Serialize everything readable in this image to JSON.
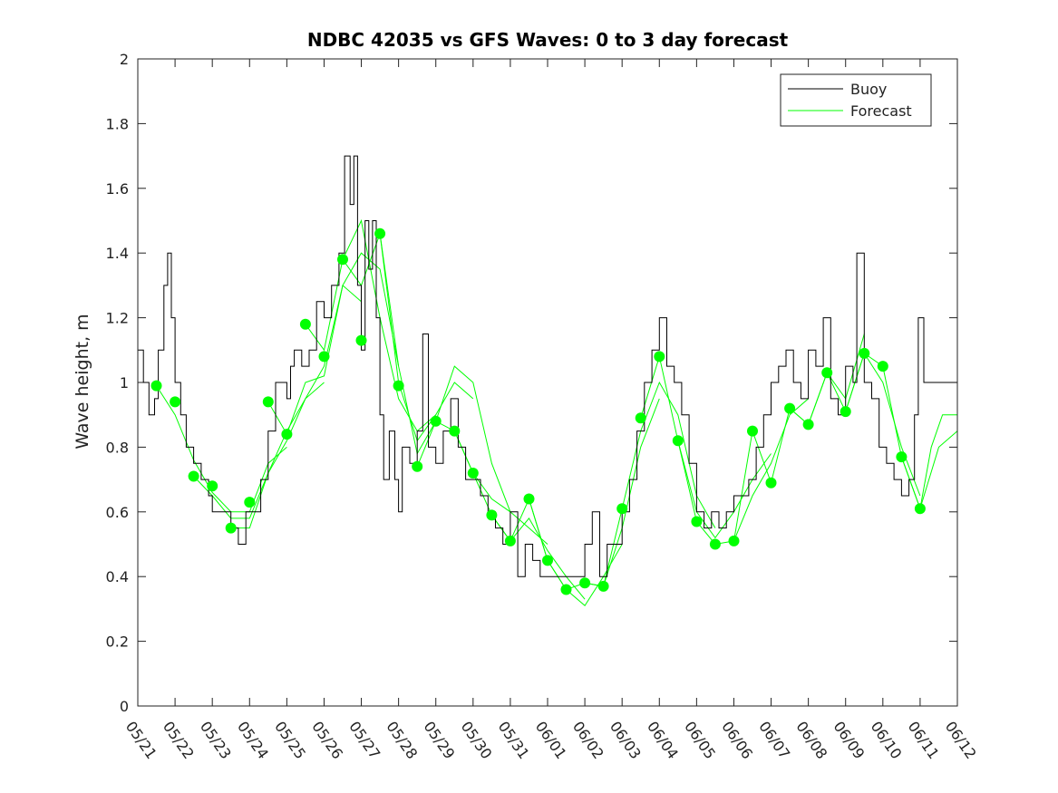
{
  "chart_data": {
    "type": "line",
    "title": "NDBC 42035 vs GFS Waves: 0 to 3 day forecast",
    "ylabel": "Wave height, m",
    "xlabel": "",
    "x_ticks": [
      "05/21",
      "05/22",
      "05/23",
      "05/24",
      "05/25",
      "05/26",
      "05/27",
      "05/28",
      "05/29",
      "05/30",
      "05/31",
      "06/01",
      "06/02",
      "06/03",
      "06/04",
      "06/05",
      "06/06",
      "06/07",
      "06/08",
      "06/09",
      "06/10",
      "06/11",
      "06/12"
    ],
    "y_ticks": [
      "0",
      "0.2",
      "0.4",
      "0.6",
      "0.8",
      "1",
      "1.2",
      "1.4",
      "1.6",
      "1.8",
      "2"
    ],
    "xlim_days": [
      0,
      22
    ],
    "ylim": [
      0,
      2
    ],
    "legend": {
      "position": "top-right",
      "entries": [
        "Buoy",
        "Forecast"
      ]
    },
    "colors": {
      "buoy": "#000000",
      "forecast": "#00ff00"
    },
    "buoy": [
      [
        0,
        1.1
      ],
      [
        0.15,
        1.0
      ],
      [
        0.3,
        0.9
      ],
      [
        0.45,
        0.95
      ],
      [
        0.55,
        1.1
      ],
      [
        0.7,
        1.3
      ],
      [
        0.8,
        1.4
      ],
      [
        0.9,
        1.2
      ],
      [
        1.0,
        1.0
      ],
      [
        1.15,
        0.9
      ],
      [
        1.3,
        0.8
      ],
      [
        1.5,
        0.75
      ],
      [
        1.7,
        0.7
      ],
      [
        1.9,
        0.65
      ],
      [
        2.0,
        0.6
      ],
      [
        2.3,
        0.6
      ],
      [
        2.5,
        0.55
      ],
      [
        2.7,
        0.5
      ],
      [
        2.9,
        0.6
      ],
      [
        3.1,
        0.6
      ],
      [
        3.3,
        0.7
      ],
      [
        3.5,
        0.85
      ],
      [
        3.7,
        1.0
      ],
      [
        3.9,
        1.0
      ],
      [
        4.0,
        0.95
      ],
      [
        4.1,
        1.05
      ],
      [
        4.2,
        1.1
      ],
      [
        4.4,
        1.05
      ],
      [
        4.6,
        1.1
      ],
      [
        4.8,
        1.25
      ],
      [
        5.0,
        1.2
      ],
      [
        5.2,
        1.3
      ],
      [
        5.4,
        1.4
      ],
      [
        5.55,
        1.7
      ],
      [
        5.7,
        1.55
      ],
      [
        5.8,
        1.7
      ],
      [
        5.9,
        1.3
      ],
      [
        6.0,
        1.1
      ],
      [
        6.1,
        1.5
      ],
      [
        6.2,
        1.35
      ],
      [
        6.3,
        1.5
      ],
      [
        6.4,
        1.2
      ],
      [
        6.5,
        0.9
      ],
      [
        6.6,
        0.7
      ],
      [
        6.75,
        0.85
      ],
      [
        6.9,
        0.7
      ],
      [
        7.0,
        0.6
      ],
      [
        7.1,
        0.8
      ],
      [
        7.3,
        0.75
      ],
      [
        7.5,
        0.85
      ],
      [
        7.65,
        1.15
      ],
      [
        7.8,
        0.8
      ],
      [
        8.0,
        0.75
      ],
      [
        8.2,
        0.85
      ],
      [
        8.4,
        0.95
      ],
      [
        8.6,
        0.8
      ],
      [
        8.8,
        0.7
      ],
      [
        9.0,
        0.7
      ],
      [
        9.2,
        0.65
      ],
      [
        9.4,
        0.6
      ],
      [
        9.6,
        0.55
      ],
      [
        9.8,
        0.5
      ],
      [
        10.0,
        0.6
      ],
      [
        10.2,
        0.4
      ],
      [
        10.4,
        0.5
      ],
      [
        10.6,
        0.45
      ],
      [
        10.8,
        0.4
      ],
      [
        11.0,
        0.4
      ],
      [
        11.2,
        0.4
      ],
      [
        11.5,
        0.4
      ],
      [
        11.8,
        0.4
      ],
      [
        12.0,
        0.5
      ],
      [
        12.2,
        0.6
      ],
      [
        12.4,
        0.4
      ],
      [
        12.6,
        0.5
      ],
      [
        12.8,
        0.5
      ],
      [
        13.0,
        0.6
      ],
      [
        13.2,
        0.7
      ],
      [
        13.4,
        0.85
      ],
      [
        13.6,
        1.0
      ],
      [
        13.8,
        1.1
      ],
      [
        14.0,
        1.2
      ],
      [
        14.2,
        1.05
      ],
      [
        14.4,
        1.0
      ],
      [
        14.6,
        0.9
      ],
      [
        14.8,
        0.75
      ],
      [
        15.0,
        0.6
      ],
      [
        15.2,
        0.55
      ],
      [
        15.4,
        0.6
      ],
      [
        15.6,
        0.55
      ],
      [
        15.8,
        0.6
      ],
      [
        16.0,
        0.65
      ],
      [
        16.2,
        0.65
      ],
      [
        16.4,
        0.7
      ],
      [
        16.6,
        0.8
      ],
      [
        16.8,
        0.9
      ],
      [
        17.0,
        1.0
      ],
      [
        17.2,
        1.05
      ],
      [
        17.4,
        1.1
      ],
      [
        17.6,
        1.0
      ],
      [
        17.8,
        0.95
      ],
      [
        18.0,
        1.1
      ],
      [
        18.2,
        1.05
      ],
      [
        18.4,
        1.2
      ],
      [
        18.6,
        0.95
      ],
      [
        18.8,
        0.9
      ],
      [
        19.0,
        1.05
      ],
      [
        19.2,
        1.0
      ],
      [
        19.3,
        1.4
      ],
      [
        19.5,
        1.0
      ],
      [
        19.7,
        0.95
      ],
      [
        19.9,
        0.8
      ],
      [
        20.1,
        0.75
      ],
      [
        20.3,
        0.7
      ],
      [
        20.5,
        0.65
      ],
      [
        20.7,
        0.7
      ],
      [
        20.85,
        0.9
      ],
      [
        20.95,
        1.2
      ],
      [
        21.1,
        1.0
      ],
      [
        21.4,
        1.0
      ],
      [
        21.7,
        1.0
      ],
      [
        22.0,
        1.0
      ]
    ],
    "forecast_markers": [
      [
        0.5,
        0.99
      ],
      [
        1.0,
        0.94
      ],
      [
        1.5,
        0.71
      ],
      [
        2.0,
        0.68
      ],
      [
        2.5,
        0.55
      ],
      [
        3.0,
        0.63
      ],
      [
        3.5,
        0.94
      ],
      [
        4.0,
        0.84
      ],
      [
        4.5,
        1.18
      ],
      [
        5.0,
        1.08
      ],
      [
        5.5,
        1.38
      ],
      [
        6.0,
        1.13
      ],
      [
        6.5,
        1.46
      ],
      [
        7.0,
        0.99
      ],
      [
        7.5,
        0.74
      ],
      [
        8.0,
        0.88
      ],
      [
        8.5,
        0.85
      ],
      [
        9.0,
        0.72
      ],
      [
        9.5,
        0.59
      ],
      [
        10.0,
        0.51
      ],
      [
        10.5,
        0.64
      ],
      [
        11.0,
        0.45
      ],
      [
        11.5,
        0.36
      ],
      [
        12.0,
        0.38
      ],
      [
        12.5,
        0.37
      ],
      [
        13.0,
        0.61
      ],
      [
        13.5,
        0.89
      ],
      [
        14.0,
        1.08
      ],
      [
        14.5,
        0.82
      ],
      [
        15.0,
        0.57
      ],
      [
        15.5,
        0.5
      ],
      [
        16.0,
        0.51
      ],
      [
        16.5,
        0.85
      ],
      [
        17.0,
        0.69
      ],
      [
        17.5,
        0.92
      ],
      [
        18.0,
        0.87
      ],
      [
        18.5,
        1.03
      ],
      [
        19.0,
        0.91
      ],
      [
        19.5,
        1.09
      ],
      [
        20.0,
        1.05
      ],
      [
        20.5,
        0.77
      ],
      [
        21.0,
        0.61
      ]
    ],
    "forecast_series": [
      {
        "values": [
          [
            0.5,
            0.99
          ],
          [
            1,
            0.9
          ],
          [
            1.5,
            0.76
          ],
          [
            2,
            0.66
          ],
          [
            2.5,
            0.6
          ],
          [
            3,
            0.6
          ],
          [
            3.5,
            0.75
          ],
          [
            4,
            0.8
          ]
        ]
      },
      {
        "values": [
          [
            1.5,
            0.71
          ],
          [
            2,
            0.65
          ],
          [
            2.5,
            0.58
          ],
          [
            3,
            0.58
          ],
          [
            3.5,
            0.72
          ],
          [
            4,
            0.85
          ],
          [
            4.5,
            0.95
          ],
          [
            5,
            1.0
          ]
        ]
      },
      {
        "values": [
          [
            2.5,
            0.55
          ],
          [
            3,
            0.55
          ],
          [
            3.5,
            0.72
          ],
          [
            4,
            0.82
          ],
          [
            4.5,
            0.95
          ],
          [
            5,
            1.05
          ],
          [
            5.5,
            1.3
          ],
          [
            6,
            1.25
          ]
        ]
      },
      {
        "values": [
          [
            3.5,
            0.94
          ],
          [
            4,
            0.84
          ],
          [
            4.5,
            1.0
          ],
          [
            5,
            1.02
          ],
          [
            5.5,
            1.3
          ],
          [
            6,
            1.4
          ],
          [
            6.5,
            1.35
          ],
          [
            7,
            1.05
          ]
        ]
      },
      {
        "values": [
          [
            4.5,
            1.18
          ],
          [
            5,
            1.1
          ],
          [
            5.5,
            1.38
          ],
          [
            6,
            1.5
          ],
          [
            6.5,
            1.2
          ],
          [
            7,
            0.95
          ],
          [
            7.5,
            0.85
          ],
          [
            8,
            0.9
          ]
        ]
      },
      {
        "values": [
          [
            5.5,
            1.38
          ],
          [
            6,
            1.3
          ],
          [
            6.5,
            1.46
          ],
          [
            7,
            1.0
          ],
          [
            7.5,
            0.82
          ],
          [
            8,
            0.9
          ],
          [
            8.5,
            1.0
          ],
          [
            9,
            0.95
          ]
        ]
      },
      {
        "values": [
          [
            6.5,
            1.46
          ],
          [
            7,
            1.05
          ],
          [
            7.5,
            0.78
          ],
          [
            8,
            0.88
          ],
          [
            8.5,
            1.05
          ],
          [
            9,
            1.0
          ],
          [
            9.5,
            0.75
          ],
          [
            10,
            0.6
          ]
        ]
      },
      {
        "values": [
          [
            7.5,
            0.74
          ],
          [
            8,
            0.88
          ],
          [
            8.5,
            0.85
          ],
          [
            9,
            0.72
          ],
          [
            9.5,
            0.64
          ],
          [
            10,
            0.6
          ],
          [
            10.5,
            0.55
          ],
          [
            11,
            0.5
          ]
        ]
      },
      {
        "values": [
          [
            8.5,
            0.85
          ],
          [
            9,
            0.72
          ],
          [
            9.5,
            0.59
          ],
          [
            10,
            0.51
          ],
          [
            10.5,
            0.58
          ],
          [
            11,
            0.48
          ],
          [
            11.5,
            0.4
          ],
          [
            12,
            0.33
          ]
        ]
      },
      {
        "values": [
          [
            9.5,
            0.59
          ],
          [
            10,
            0.51
          ],
          [
            10.5,
            0.64
          ],
          [
            11,
            0.45
          ],
          [
            11.5,
            0.36
          ],
          [
            12,
            0.31
          ],
          [
            12.5,
            0.4
          ],
          [
            13,
            0.5
          ]
        ]
      },
      {
        "values": [
          [
            10.5,
            0.64
          ],
          [
            11,
            0.45
          ],
          [
            11.5,
            0.36
          ],
          [
            12,
            0.38
          ],
          [
            12.5,
            0.37
          ],
          [
            13,
            0.55
          ],
          [
            13.5,
            0.8
          ],
          [
            14,
            0.95
          ]
        ]
      },
      {
        "values": [
          [
            12,
            0.38
          ],
          [
            12.5,
            0.37
          ],
          [
            13,
            0.61
          ],
          [
            13.5,
            0.85
          ],
          [
            14,
            1.0
          ],
          [
            14.5,
            0.9
          ],
          [
            15,
            0.65
          ],
          [
            15.5,
            0.55
          ]
        ]
      },
      {
        "values": [
          [
            13.5,
            0.89
          ],
          [
            14,
            1.08
          ],
          [
            14.5,
            0.82
          ],
          [
            15,
            0.6
          ],
          [
            15.5,
            0.52
          ],
          [
            16,
            0.6
          ],
          [
            16.5,
            0.7
          ],
          [
            17,
            0.78
          ]
        ]
      },
      {
        "values": [
          [
            14.5,
            0.82
          ],
          [
            15,
            0.57
          ],
          [
            15.5,
            0.5
          ],
          [
            16,
            0.51
          ],
          [
            16.5,
            0.65
          ],
          [
            17,
            0.75
          ],
          [
            17.5,
            0.9
          ],
          [
            18,
            0.95
          ]
        ]
      },
      {
        "values": [
          [
            16,
            0.51
          ],
          [
            16.5,
            0.85
          ],
          [
            17,
            0.69
          ],
          [
            17.5,
            0.92
          ],
          [
            18,
            0.87
          ],
          [
            18.5,
            1.03
          ],
          [
            19,
            0.95
          ],
          [
            19.5,
            1.15
          ]
        ]
      },
      {
        "values": [
          [
            17.5,
            0.92
          ],
          [
            18,
            0.87
          ],
          [
            18.5,
            1.03
          ],
          [
            19,
            0.91
          ],
          [
            19.5,
            1.09
          ],
          [
            20,
            1.0
          ],
          [
            20.5,
            0.8
          ],
          [
            21,
            0.65
          ]
        ]
      },
      {
        "values": [
          [
            19,
            0.91
          ],
          [
            19.5,
            1.09
          ],
          [
            20,
            1.05
          ],
          [
            20.5,
            0.77
          ],
          [
            21,
            0.61
          ],
          [
            21.5,
            0.8
          ],
          [
            22,
            0.85
          ]
        ]
      },
      {
        "values": [
          [
            20.5,
            0.77
          ],
          [
            21,
            0.61
          ],
          [
            21.3,
            0.8
          ],
          [
            21.6,
            0.9
          ],
          [
            22,
            0.9
          ]
        ]
      }
    ]
  }
}
